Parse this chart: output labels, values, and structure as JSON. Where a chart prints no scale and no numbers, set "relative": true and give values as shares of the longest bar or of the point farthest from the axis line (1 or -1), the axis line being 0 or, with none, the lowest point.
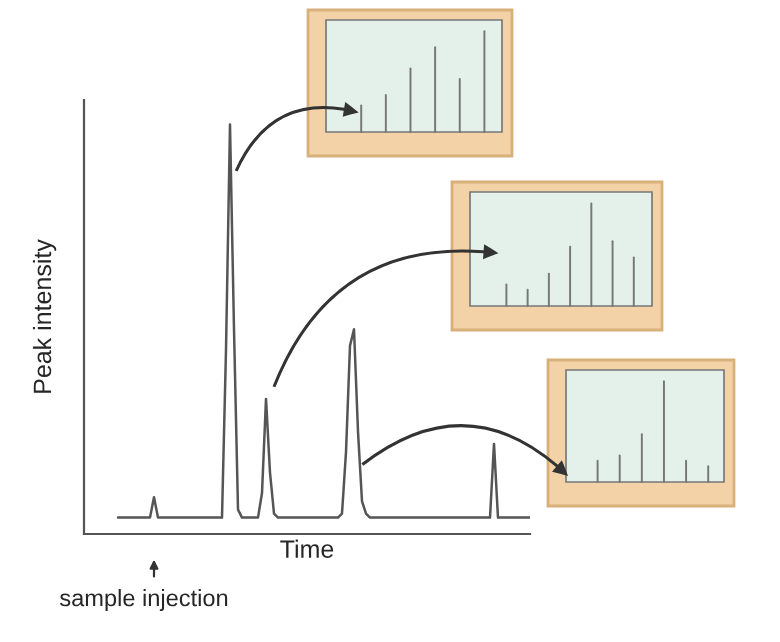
{
  "chart_data": {
    "type": "line",
    "relative": true,
    "xlabel": "Time",
    "ylabel": "Peak intensity",
    "annotations": [
      "sample injection"
    ],
    "categories": [
      null,
      null,
      null,
      null,
      null,
      null,
      null,
      null,
      null,
      null,
      null,
      null,
      null,
      null,
      null,
      null,
      null,
      null,
      null,
      null,
      null,
      null,
      null,
      null,
      null,
      null,
      null,
      null,
      null,
      null,
      null,
      null,
      null,
      null,
      null,
      null,
      null,
      null,
      null,
      null,
      null,
      null,
      null,
      null,
      null,
      null,
      null,
      null,
      null,
      null,
      null,
      null,
      null,
      null,
      null,
      null,
      null,
      null,
      null,
      null,
      null,
      null,
      null,
      null,
      null,
      null,
      null,
      null,
      null,
      null,
      null,
      null,
      null,
      null,
      null,
      null,
      null,
      null,
      null,
      null,
      null,
      null,
      null,
      null,
      null,
      null,
      null,
      null,
      null,
      null,
      null,
      null,
      null,
      null,
      null,
      null,
      null,
      null,
      null,
      null,
      null,
      null,
      null,
      null
    ],
    "series": [
      {
        "color": "#555555",
        "values": [
          0.04,
          0.04,
          0.04,
          0.04,
          0.04,
          0.04,
          0.04,
          0.04,
          0.04,
          0.09,
          0.04,
          0.04,
          0.04,
          0.04,
          0.04,
          0.04,
          0.04,
          0.04,
          0.04,
          0.04,
          0.04,
          0.04,
          0.04,
          0.04,
          0.04,
          0.04,
          0.04,
          0.45,
          1.0,
          0.5,
          0.06,
          0.04,
          0.04,
          0.04,
          0.04,
          0.04,
          0.1,
          0.33,
          0.15,
          0.05,
          0.04,
          0.04,
          0.04,
          0.04,
          0.04,
          0.04,
          0.04,
          0.04,
          0.04,
          0.04,
          0.04,
          0.04,
          0.04,
          0.04,
          0.04,
          0.04,
          0.05,
          0.2,
          0.46,
          0.5,
          0.25,
          0.08,
          0.05,
          0.04,
          0.04,
          0.04,
          0.04,
          0.04,
          0.04,
          0.04,
          0.04,
          0.04,
          0.04,
          0.04,
          0.04,
          0.04,
          0.04,
          0.04,
          0.04,
          0.04,
          0.04,
          0.04,
          0.04,
          0.04,
          0.04,
          0.04,
          0.04,
          0.04,
          0.04,
          0.04,
          0.04,
          0.04,
          0.04,
          0.04,
          0.22,
          0.04,
          0.04,
          0.04,
          0.04,
          0.04,
          0.04,
          0.04,
          0.04,
          0.04
        ]
      }
    ],
    "marker": "none"
  }
}
